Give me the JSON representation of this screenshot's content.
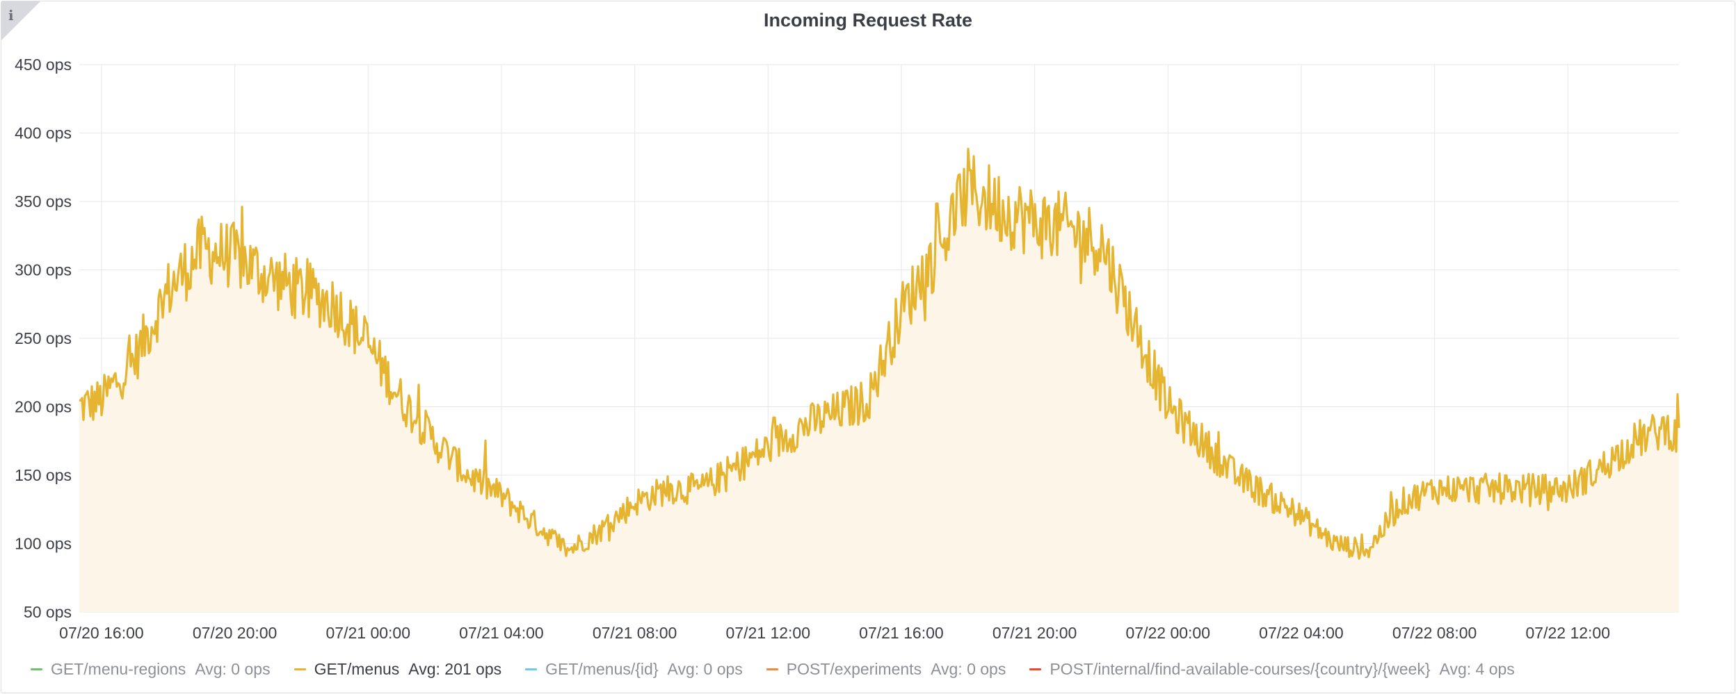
{
  "panel": {
    "info_icon": "info-icon",
    "title": "Incoming Request Rate"
  },
  "colors": {
    "series": "#e5b531",
    "fill": "#fdf5e7",
    "grid": "#e6e7ea",
    "text": "#3b3e45",
    "muted": "#8e9098"
  },
  "legend": [
    {
      "label": "GET/menu-regions",
      "avg": "Avg: 0 ops",
      "color": "#6cc46a",
      "active": false
    },
    {
      "label": "GET/menus",
      "avg": "Avg: 201 ops",
      "color": "#e5b531",
      "active": true
    },
    {
      "label": "GET/menus/{id}",
      "avg": "Avg: 0 ops",
      "color": "#6fc9e8",
      "active": false
    },
    {
      "label": "POST/experiments",
      "avg": "Avg: 0 ops",
      "color": "#ef8a3c",
      "active": false
    },
    {
      "label": "POST/internal/find-available-courses/{country}/{week}",
      "avg": "Avg: 4 ops",
      "color": "#e8473a",
      "active": false
    }
  ],
  "chart_data": {
    "type": "area",
    "title": "Incoming Request Rate",
    "xlabel": "",
    "ylabel": "",
    "unit": "ops",
    "ylim": [
      50,
      450
    ],
    "yticks": [
      50,
      100,
      150,
      200,
      250,
      300,
      350,
      400,
      450
    ],
    "ytick_labels": [
      "50 ops",
      "100 ops",
      "150 ops",
      "200 ops",
      "250 ops",
      "300 ops",
      "350 ops",
      "400 ops",
      "450 ops"
    ],
    "xlim": [
      "07/20 15:20",
      "07/22 15:20"
    ],
    "xticks": [
      "07/20 16:00",
      "07/20 20:00",
      "07/21 00:00",
      "07/21 04:00",
      "07/21 08:00",
      "07/21 12:00",
      "07/21 16:00",
      "07/21 20:00",
      "07/22 00:00",
      "07/22 04:00",
      "07/22 08:00",
      "07/22 12:00"
    ],
    "grid": true,
    "legend_position": "bottom",
    "series": [
      {
        "name": "GET/menus",
        "x": [
          "07/20 15:20",
          "07/20 16:00",
          "07/20 17:00",
          "07/20 18:00",
          "07/20 19:00",
          "07/20 20:00",
          "07/20 21:00",
          "07/20 22:00",
          "07/20 23:00",
          "07/21 00:00",
          "07/21 01:00",
          "07/21 02:00",
          "07/21 03:00",
          "07/21 04:00",
          "07/21 05:00",
          "07/21 06:00",
          "07/21 07:00",
          "07/21 08:00",
          "07/21 09:00",
          "07/21 10:00",
          "07/21 11:00",
          "07/21 12:00",
          "07/21 13:00",
          "07/21 14:00",
          "07/21 15:00",
          "07/21 16:00",
          "07/21 17:00",
          "07/21 18:00",
          "07/21 19:00",
          "07/21 20:00",
          "07/21 21:00",
          "07/21 22:00",
          "07/21 23:00",
          "07/22 00:00",
          "07/22 01:00",
          "07/22 02:00",
          "07/22 03:00",
          "07/22 04:00",
          "07/22 05:00",
          "07/22 06:00",
          "07/22 07:00",
          "07/22 08:00",
          "07/22 09:00",
          "07/22 10:00",
          "07/22 11:00",
          "07/22 12:00",
          "07/22 13:00",
          "07/22 14:00",
          "07/22 15:00",
          "07/22 15:20"
        ],
        "values": [
          200,
          205,
          235,
          285,
          315,
          310,
          295,
          285,
          275,
          245,
          205,
          175,
          150,
          135,
          115,
          95,
          110,
          130,
          140,
          140,
          155,
          170,
          185,
          195,
          205,
          270,
          310,
          360,
          345,
          335,
          330,
          320,
          260,
          200,
          175,
          150,
          135,
          120,
          100,
          95,
          130,
          140,
          140,
          140,
          140,
          140,
          155,
          175,
          185,
          175
        ]
      },
      {
        "name": "GET/menu-regions",
        "values": []
      },
      {
        "name": "GET/menus/{id}",
        "values": []
      },
      {
        "name": "POST/experiments",
        "values": []
      },
      {
        "name": "POST/internal/find-available-courses/{country}/{week}",
        "values": []
      }
    ]
  }
}
